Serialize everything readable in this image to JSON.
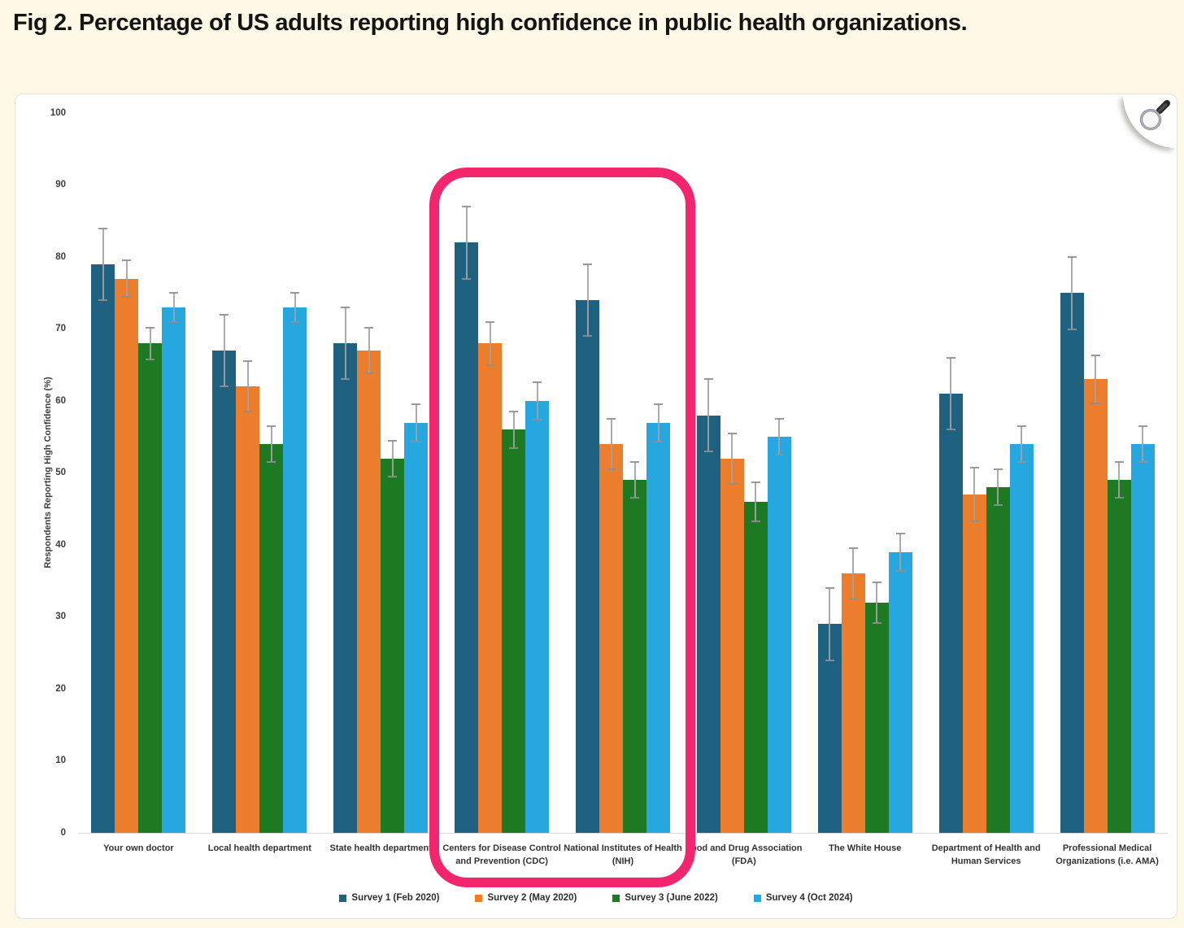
{
  "page": {
    "title": "Fig 2. Percentage of US adults reporting high confidence in public health organizations.",
    "background_color": "#FDF9E6",
    "panel_color": "#FFFFFF"
  },
  "icons": {
    "zoom_button": "magnifier-icon"
  },
  "chart_data": {
    "type": "bar",
    "title": "Fig 2. Percentage of US adults reporting high confidence in public health organizations.",
    "xlabel": "",
    "ylabel": "Respondents Reporting High Confidence (%)",
    "ylim": [
      0,
      100
    ],
    "yticks": [
      0,
      10,
      20,
      30,
      40,
      50,
      60,
      70,
      80,
      90,
      100
    ],
    "grid": false,
    "legend_position": "bottom-center",
    "error_bars": true,
    "error_bar_color": "#A3A3A3",
    "categories": [
      "Your own doctor",
      "Local health department",
      "State health department",
      "Centers for Disease Control and Prevention (CDC)",
      "National Institutes of Health (NIH)",
      "Food and Drug Association (FDA)",
      "The White House",
      "Department of Health and Human Services",
      "Professional Medical Organizations (i.e. AMA)"
    ],
    "series": [
      {
        "name": "Survey 1 (Feb 2020)",
        "color": "#1F6180",
        "values": [
          79,
          67,
          68,
          82,
          74,
          58,
          29,
          61,
          75
        ],
        "errors": [
          5,
          5,
          5,
          5,
          5,
          5,
          5,
          5,
          5
        ]
      },
      {
        "name": "Survey 2 (May 2020)",
        "color": "#EC7D2D",
        "values": [
          77,
          62,
          67,
          68,
          54,
          52,
          36,
          47,
          63
        ],
        "errors": [
          2.5,
          3.5,
          3.2,
          3,
          3.5,
          3.5,
          3.6,
          3.7,
          3.3
        ]
      },
      {
        "name": "Survey 3 (June 2022)",
        "color": "#1E7A22",
        "values": [
          68,
          54,
          52,
          56,
          49,
          46,
          32,
          48,
          49
        ],
        "errors": [
          2.2,
          2.5,
          2.5,
          2.5,
          2.5,
          2.7,
          2.8,
          2.5,
          2.5
        ]
      },
      {
        "name": "Survey 4 (Oct 2024)",
        "color": "#27A7DF",
        "values": [
          73,
          73,
          57,
          60,
          57,
          55,
          39,
          54,
          54
        ],
        "errors": [
          2,
          2,
          2.6,
          2.6,
          2.6,
          2.5,
          2.6,
          2.5,
          2.5
        ]
      }
    ],
    "highlight": {
      "from_category_index": 3,
      "to_category_index": 4,
      "color": "#F2256D",
      "note": "pink rounded rectangle around CDC and NIH groups"
    }
  }
}
